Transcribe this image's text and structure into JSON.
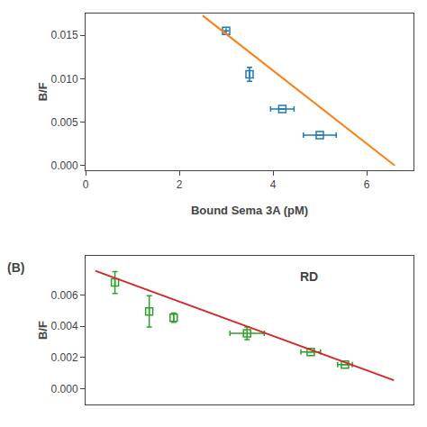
{
  "chart_data": [
    {
      "type": "scatter",
      "xlabel": "Bound Sema 3A (pM)",
      "ylabel": "B/F",
      "xlim": [
        0,
        7
      ],
      "ylim": [
        -0.0005,
        0.0175
      ],
      "xticks": [
        0,
        2,
        4,
        6
      ],
      "yticks": [
        {
          "value": 0,
          "label": "0.000"
        },
        0.005,
        {
          "value": 0.01,
          "label": "0.010"
        },
        0.015
      ],
      "grid": false,
      "series": [
        {
          "type": "scatter",
          "marker": "square",
          "x": [
            3.0,
            3.5,
            4.2,
            5.0
          ],
          "values": [
            0.0155,
            0.0105,
            0.0065,
            0.0035
          ],
          "xerr": [
            0.0,
            0.0,
            0.25,
            0.35
          ],
          "yerr": [
            0.0,
            0.0008,
            0.0,
            0.0
          ]
        },
        {
          "type": "line",
          "line_style": "solid",
          "x": [
            2.5,
            6.6
          ],
          "values": [
            0.01725,
            0.0
          ]
        }
      ]
    },
    {
      "type": "scatter",
      "ylabel": "B/F",
      "xlim": [
        0.5,
        7.2
      ],
      "ylim": [
        -0.001,
        0.0085
      ],
      "xticks": [],
      "yticks": [
        {
          "value": 0,
          "label": "0.000"
        },
        0.002,
        0.004,
        0.006
      ],
      "tick_labels": "y",
      "grid": false,
      "annotations": [
        "RD",
        "(B)"
      ],
      "series": [
        {
          "type": "scatter",
          "marker": "square",
          "x": [
            1.1,
            1.8,
            2.3,
            3.8,
            5.1,
            5.8
          ],
          "values": [
            0.0068,
            0.00495,
            0.00455,
            0.00355,
            0.00235,
            0.00155
          ],
          "xerr": [
            0.0,
            0.0,
            0.0,
            0.35,
            0.2,
            0.15
          ],
          "yerr": [
            0.0007,
            0.001,
            0.0003,
            0.0004,
            0.0,
            0.0
          ]
        },
        {
          "type": "line",
          "line_style": "solid",
          "x": [
            0.7,
            6.8
          ],
          "values": [
            0.00755,
            0.00055
          ]
        }
      ]
    }
  ]
}
